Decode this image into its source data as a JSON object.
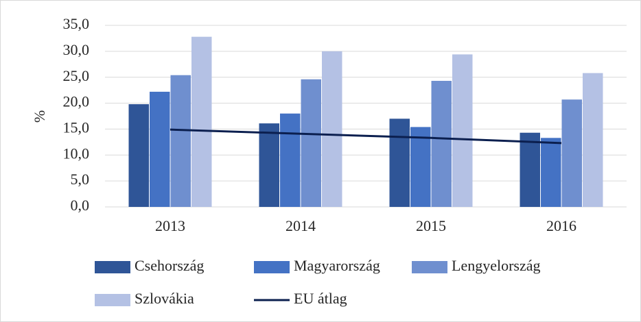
{
  "chart_data": {
    "type": "bar",
    "y_label": "%",
    "categories": [
      "2013",
      "2014",
      "2015",
      "2016"
    ],
    "series": [
      {
        "name": "Csehország",
        "color": "#2f5597",
        "values": [
          19.8,
          16.1,
          17.0,
          14.3
        ]
      },
      {
        "name": "Magyarország",
        "color": "#4472c4",
        "values": [
          22.2,
          18.0,
          15.4,
          13.3
        ]
      },
      {
        "name": "Lengyelország",
        "color": "#6f8fcf",
        "values": [
          25.4,
          24.6,
          24.3,
          20.7
        ]
      },
      {
        "name": "Szlovákia",
        "color": "#b4c1e4",
        "values": [
          32.8,
          30.0,
          29.4,
          25.8
        ]
      },
      {
        "name": "EU átlag",
        "type": "line",
        "color": "#0b1f4f",
        "values": [
          14.9,
          14.1,
          13.3,
          12.3
        ]
      }
    ],
    "ylim": [
      0,
      35
    ],
    "yticks": [
      {
        "value": 0,
        "label": "0,0"
      },
      {
        "value": 5,
        "label": "5,0"
      },
      {
        "value": 10,
        "label": "10,0"
      },
      {
        "value": 15,
        "label": "15,0"
      },
      {
        "value": 20,
        "label": "20,0"
      },
      {
        "value": 25,
        "label": "25,0"
      },
      {
        "value": 30,
        "label": "30,0"
      },
      {
        "value": 35,
        "label": "35,0"
      }
    ],
    "grid": true,
    "legend": "bottom"
  }
}
